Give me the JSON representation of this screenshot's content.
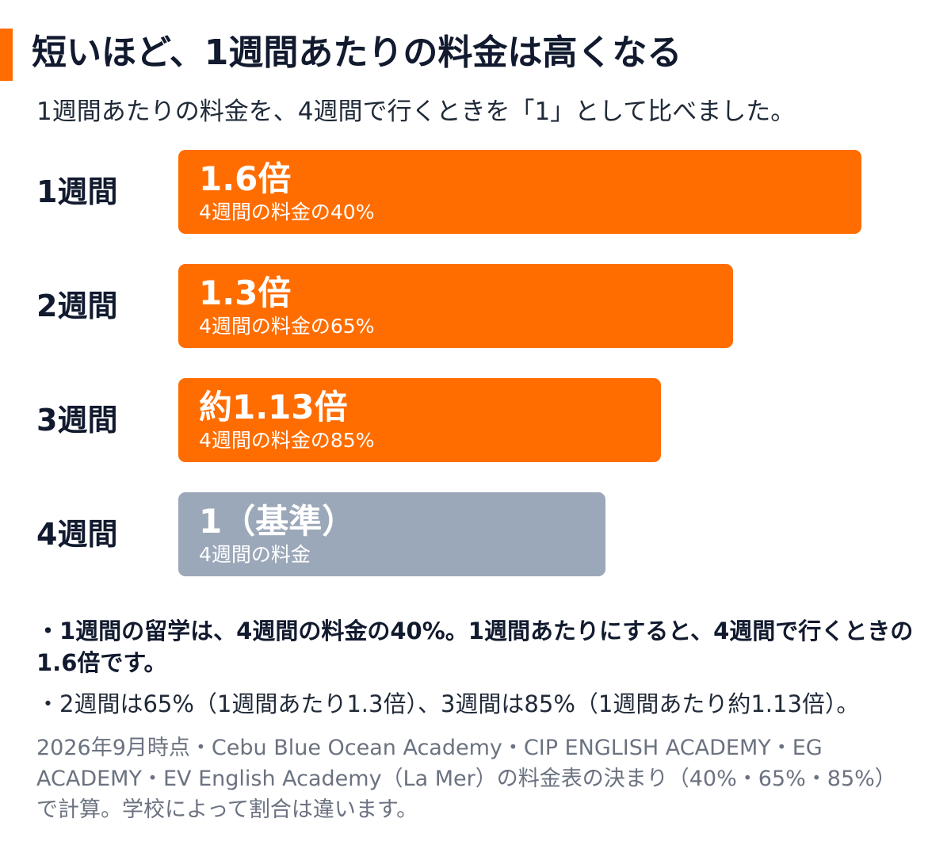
{
  "title": "短いほど、1週間あたりの料金は高くなる",
  "subtitle": "1週間あたりの料金を、4週間で行くときを「1」として比べました。",
  "colors": {
    "accent": "#ff6d00",
    "baseline": "#9ba8b9",
    "text": "#111a2e"
  },
  "chart_data": {
    "type": "bar",
    "orientation": "horizontal",
    "categories": [
      "1週間",
      "2週間",
      "3週間",
      "4週間"
    ],
    "values": [
      1.6,
      1.3,
      1.13,
      1
    ],
    "value_labels": [
      "1.6倍",
      "1.3倍",
      "約1.13倍",
      "1（基準）"
    ],
    "sub_labels": [
      "4週間の料金の40%",
      "4週間の料金の65%",
      "4週間の料金の85%",
      "4週間の料金"
    ],
    "bar_colors": [
      "#ff6d00",
      "#ff6d00",
      "#ff6d00",
      "#9ba8b9"
    ],
    "xlim": [
      0,
      1.6
    ],
    "grid": false,
    "legend": "none"
  },
  "notes": {
    "line1": "・1週間の留学は、4週間の料金の40%。1週間あたりにすると、4週間で行くときの1.6倍です。",
    "line2": "・2週間は65%（1週間あたり1.3倍）、3週間は85%（1週間あたり約1.13倍）。"
  },
  "source": "2026年9月時点・Cebu Blue Ocean Academy・CIP ENGLISH ACADEMY・EG ACADEMY・EV English Academy（La Mer）の料金表の決まり（40%・65%・85%）で計算。学校によって割合は違います。"
}
